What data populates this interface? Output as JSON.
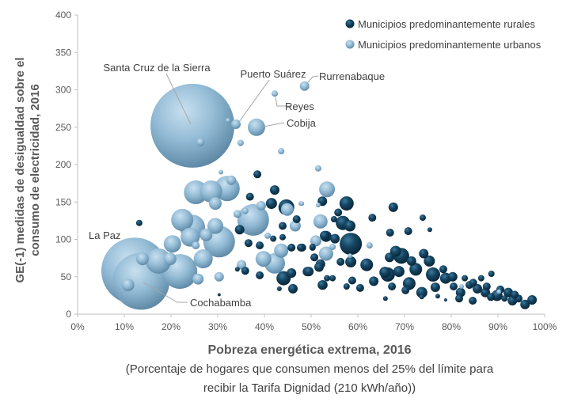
{
  "chart_data": {
    "type": "bubble",
    "xlabel": "Pobreza energética extrema, 2016",
    "xlabel_note_lines": [
      "(Porcentaje de hogares que consumen menos del 25% del límite para",
      "recibir la Tarifa Dignidad (210 kWh/año))"
    ],
    "ylabel_lines": [
      "GE(-1) medidas de desigualdad sobre el",
      "consumo de electricidad, 2016"
    ],
    "xlim": [
      0,
      100
    ],
    "ylim": [
      0,
      400
    ],
    "x_ticks": [
      0,
      10,
      20,
      30,
      40,
      50,
      60,
      70,
      80,
      90,
      100
    ],
    "x_tick_labels": [
      "0%",
      "10%",
      "20%",
      "30%",
      "40%",
      "50%",
      "60%",
      "70%",
      "80%",
      "90%",
      "100%"
    ],
    "y_ticks": [
      0,
      50,
      100,
      150,
      200,
      250,
      300,
      350,
      400
    ],
    "y_tick_labels": [
      "0",
      "50",
      "100",
      "150",
      "200",
      "250",
      "300",
      "350",
      "400"
    ],
    "grid": false,
    "legend_position": "top-right",
    "annotations": {
      "santa_cruz": "Santa Cruz de la Sierra",
      "puerto_suarez": "Puerto Suárez",
      "rurrenabaque": "Rurrenabaque",
      "reyes": "Reyes",
      "cobija": "Cobija",
      "la_paz": "La Paz",
      "cochabamba": "Cochabamba"
    },
    "series": [
      {
        "name": "Municipios predominantemente rurales",
        "color": "#0f3a55",
        "points": [
          [
            57.6,
            148,
            81
          ],
          [
            52.4,
            151,
            36
          ],
          [
            67.6,
            143,
            36
          ],
          [
            63.1,
            129,
            25
          ],
          [
            73.9,
            129,
            16
          ],
          [
            75.4,
            113,
            9
          ],
          [
            55.8,
            136,
            25
          ],
          [
            54.9,
            127,
            16
          ],
          [
            56.8,
            122,
            81
          ],
          [
            58.3,
            118,
            49
          ],
          [
            66.9,
            109,
            25
          ],
          [
            70.8,
            111,
            25
          ],
          [
            58.5,
            94,
            196
          ],
          [
            53.2,
            104,
            49
          ],
          [
            55.1,
            101,
            36
          ],
          [
            48.1,
            89,
            25
          ],
          [
            50.3,
            89,
            16
          ],
          [
            56.3,
            70,
            25
          ],
          [
            58.5,
            70,
            49
          ],
          [
            61.9,
            66,
            64
          ],
          [
            52.0,
            67,
            36
          ],
          [
            49.2,
            57,
            36
          ],
          [
            53.4,
            48,
            16
          ],
          [
            52.5,
            39,
            36
          ],
          [
            54.6,
            48,
            16
          ],
          [
            58.8,
            45,
            25
          ],
          [
            63.4,
            44,
            36
          ],
          [
            60.5,
            35,
            25
          ],
          [
            57.6,
            37,
            16
          ],
          [
            65.9,
            21,
            9
          ],
          [
            69.3,
            78,
            100
          ],
          [
            66.8,
            76,
            36
          ],
          [
            66.4,
            53,
            81
          ],
          [
            68.8,
            57,
            49
          ],
          [
            67.3,
            37,
            25
          ],
          [
            71.0,
            41,
            64
          ],
          [
            72.4,
            60,
            64
          ],
          [
            70.2,
            32,
            25
          ],
          [
            73.7,
            29,
            49
          ],
          [
            75.3,
            71,
            49
          ],
          [
            76.1,
            53,
            81
          ],
          [
            76.6,
            36,
            36
          ],
          [
            78.8,
            48,
            49
          ],
          [
            78.3,
            60,
            25
          ],
          [
            80.5,
            37,
            25
          ],
          [
            82.0,
            29,
            36
          ],
          [
            82.9,
            48,
            16
          ],
          [
            83.9,
            39,
            25
          ],
          [
            85.6,
            34,
            36
          ],
          [
            86.4,
            48,
            16
          ],
          [
            87.3,
            29,
            36
          ],
          [
            88.6,
            54,
            16
          ],
          [
            89.8,
            25,
            49
          ],
          [
            92.2,
            29,
            36
          ],
          [
            93.1,
            18,
            36
          ],
          [
            94.4,
            21,
            25
          ],
          [
            95.8,
            13,
            36
          ],
          [
            97.3,
            19,
            36
          ],
          [
            77.1,
            24,
            9
          ],
          [
            78.8,
            19,
            4
          ],
          [
            73.7,
            23,
            9
          ],
          [
            84.6,
            18,
            25
          ],
          [
            88.5,
            23,
            25
          ],
          [
            91.4,
            21,
            16
          ],
          [
            81.7,
            21,
            25
          ],
          [
            13.2,
            122,
            16
          ],
          [
            38.5,
            187,
            25
          ],
          [
            42.2,
            166,
            36
          ],
          [
            36.9,
            157,
            25
          ],
          [
            41.5,
            148,
            49
          ],
          [
            44.7,
            143,
            100
          ],
          [
            46.9,
            127,
            25
          ],
          [
            43.9,
            118,
            25
          ],
          [
            34.7,
            113,
            36
          ],
          [
            36.6,
            95,
            25
          ],
          [
            39.0,
            92,
            25
          ],
          [
            41.9,
            101,
            16
          ],
          [
            43.9,
            103,
            16
          ],
          [
            45.8,
            89,
            25
          ],
          [
            47.8,
            89,
            25
          ],
          [
            50.3,
            90,
            16
          ],
          [
            52.9,
            105,
            36
          ],
          [
            35.9,
            58,
            25
          ],
          [
            39.0,
            52,
            25
          ],
          [
            45.8,
            55,
            36
          ],
          [
            44.1,
            48,
            81
          ],
          [
            49.5,
            57,
            36
          ],
          [
            51.7,
            63,
            36
          ],
          [
            52.4,
            39,
            36
          ],
          [
            46.1,
            34,
            36
          ],
          [
            43.2,
            34,
            9
          ],
          [
            30.3,
            26,
            4
          ],
          [
            34.2,
            60,
            9
          ],
          [
            50.7,
            76,
            25
          ],
          [
            68.1,
            84,
            49
          ],
          [
            71.5,
            71,
            36
          ],
          [
            74.1,
            81,
            36
          ],
          [
            80.3,
            50,
            36
          ],
          [
            84.7,
            42,
            25
          ],
          [
            87.6,
            37,
            25
          ],
          [
            90.5,
            33,
            25
          ],
          [
            93.6,
            26,
            25
          ],
          [
            65.8,
            56,
            49
          ]
        ]
      },
      {
        "name": "Municipios predominantemente urbanos",
        "color": "#8fb8d3",
        "points": [
          [
            24.6,
            252,
            2809
          ],
          [
            12.2,
            58,
            1764
          ],
          [
            13.6,
            44,
            1296
          ],
          [
            33.9,
            254,
            36
          ],
          [
            32.2,
            259,
            9
          ],
          [
            48.6,
            305,
            36
          ],
          [
            42.2,
            295,
            16
          ],
          [
            38.3,
            250,
            121
          ],
          [
            26.3,
            230,
            25
          ],
          [
            34.9,
            229,
            16
          ],
          [
            43.6,
            218,
            16
          ],
          [
            25.3,
            163,
            225
          ],
          [
            28.6,
            164,
            196
          ],
          [
            32.0,
            168,
            256
          ],
          [
            32.9,
            179,
            36
          ],
          [
            29.5,
            148,
            64
          ],
          [
            30.7,
            190,
            9
          ],
          [
            22.4,
            126,
            196
          ],
          [
            24.6,
            116,
            256
          ],
          [
            29.5,
            118,
            100
          ],
          [
            30.3,
            97,
            400
          ],
          [
            24.1,
            103,
            144
          ],
          [
            27.5,
            106,
            64
          ],
          [
            20.3,
            94,
            121
          ],
          [
            26.9,
            74,
            144
          ],
          [
            21.9,
            57,
            484
          ],
          [
            17.3,
            71,
            256
          ],
          [
            13.9,
            74,
            64
          ],
          [
            10.8,
            39,
            64
          ],
          [
            19.8,
            74,
            64
          ],
          [
            25.3,
            92,
            25
          ],
          [
            30.3,
            50,
            36
          ],
          [
            25.8,
            47,
            49
          ],
          [
            37.6,
            126,
            400
          ],
          [
            39.3,
            145,
            36
          ],
          [
            34.2,
            134,
            25
          ],
          [
            35.9,
            138,
            16
          ],
          [
            39.8,
            74,
            100
          ],
          [
            42.2,
            68,
            169
          ],
          [
            43.6,
            85,
            81
          ],
          [
            35.1,
            66,
            36
          ],
          [
            40.7,
            105,
            16
          ],
          [
            44.9,
            140,
            64
          ],
          [
            46.6,
            118,
            49
          ],
          [
            47.8,
            148,
            9
          ],
          [
            51.5,
            195,
            16
          ],
          [
            53.4,
            167,
            100
          ],
          [
            52.0,
            124,
            81
          ],
          [
            51.0,
            98,
            49
          ],
          [
            53.2,
            81,
            81
          ],
          [
            54.6,
            90,
            16
          ],
          [
            62.5,
            92,
            16
          ],
          [
            58.3,
            78,
            9
          ],
          [
            48.0,
            148,
            9
          ],
          [
            82.2,
            37,
            9
          ],
          [
            90.2,
            30,
            9
          ],
          [
            51.5,
            146,
            9
          ]
        ]
      }
    ]
  }
}
